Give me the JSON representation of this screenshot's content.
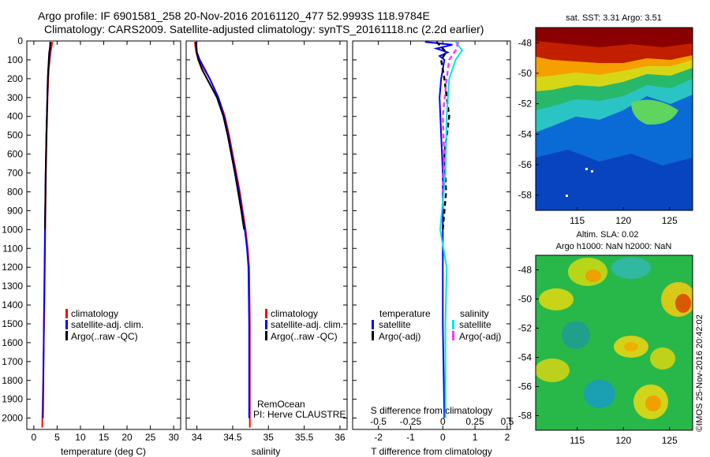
{
  "header": {
    "line1": "Argo profile: IF 6901581_258 20-Nov-2016 20161120_477 52.9993S 118.9784E",
    "line2": "Climatology: CARS2009. Satellite-adjusted climatology: synTS_20161118.nc (2.2d earlier)"
  },
  "colors": {
    "climatology": "#ff0000",
    "satellite": "#0000ff",
    "argo": "#000000",
    "sat_salinity": "#00e5e5",
    "argo_salinity": "#ff33ff"
  },
  "depth_axis": {
    "ticks": [
      "0",
      "100",
      "200",
      "300",
      "400",
      "500",
      "600",
      "700",
      "800",
      "900",
      "1000",
      "1100",
      "1200",
      "1300",
      "1400",
      "1500",
      "1600",
      "1700",
      "1800",
      "1900",
      "2000"
    ],
    "range": [
      0,
      2060
    ]
  },
  "chart_data": [
    {
      "type": "line",
      "panel": "temperature",
      "xlabel": "temperature (deg C)",
      "xlim": [
        -1.5,
        31.5
      ],
      "xticks": [
        "0",
        "5",
        "10",
        "15",
        "20",
        "25",
        "30"
      ],
      "legend": [
        "climatology",
        "satellite-adj. clim.",
        "Argo(..raw -QC)"
      ],
      "series": [
        {
          "name": "climatology",
          "depth": [
            5,
            30,
            60,
            100,
            150,
            200,
            300,
            500,
            700,
            1000,
            1200,
            1500,
            1800,
            2050
          ],
          "values": [
            4.0,
            3.8,
            3.6,
            3.4,
            3.2,
            3.1,
            2.95,
            2.75,
            2.6,
            2.45,
            2.35,
            2.2,
            2.0,
            1.8
          ]
        },
        {
          "name": "satellite-adj. clim.",
          "depth": [
            5,
            30,
            60,
            100,
            150,
            200,
            300,
            500,
            700,
            1000,
            1200,
            1500,
            1800,
            2000
          ],
          "values": [
            3.5,
            3.5,
            3.4,
            3.3,
            3.1,
            3.0,
            2.9,
            2.7,
            2.55,
            2.4,
            2.3,
            2.15,
            2.05,
            1.95
          ]
        },
        {
          "name": "Argo(..raw -QC)",
          "depth": [
            5,
            30,
            60,
            100,
            150,
            200,
            300,
            500,
            700,
            1000
          ],
          "values": [
            3.6,
            3.5,
            3.3,
            3.2,
            3.1,
            3.0,
            2.9,
            2.7,
            2.55,
            2.4
          ]
        }
      ]
    },
    {
      "type": "line",
      "panel": "salinity",
      "xlabel": "salinity",
      "xlim": [
        33.85,
        36.1
      ],
      "xticks": [
        "34",
        "34.5",
        "35",
        "35.5",
        "36"
      ],
      "legend": [
        "climatology",
        "satellite-adj. clim.",
        "Argo(..raw -QC)"
      ],
      "series": [
        {
          "name": "climatology",
          "depth": [
            5,
            60,
            100,
            150,
            200,
            300,
            400,
            500,
            600,
            700,
            800,
            900,
            1000,
            1100,
            1200,
            1500,
            2050
          ],
          "values": [
            33.97,
            33.99,
            34.02,
            34.1,
            34.18,
            34.3,
            34.39,
            34.45,
            34.5,
            34.55,
            34.6,
            34.64,
            34.68,
            34.71,
            34.73,
            34.74,
            34.74
          ]
        },
        {
          "name": "satellite-adj. clim.",
          "depth": [
            5,
            60,
            100,
            150,
            200,
            300,
            400,
            500,
            600,
            700,
            800,
            900,
            1000,
            1100,
            1200,
            1500,
            2000
          ],
          "values": [
            33.99,
            34.0,
            34.04,
            34.11,
            34.18,
            34.3,
            34.38,
            34.44,
            34.49,
            34.54,
            34.59,
            34.63,
            34.67,
            34.7,
            34.72,
            34.73,
            34.73
          ]
        },
        {
          "name": "Argo(..raw -QC)",
          "depth": [
            5,
            60,
            100,
            150,
            200,
            300,
            400,
            500,
            700,
            900,
            1000
          ],
          "values": [
            33.98,
            34.0,
            34.02,
            34.07,
            34.14,
            34.28,
            34.37,
            34.43,
            34.53,
            34.62,
            34.66
          ]
        }
      ],
      "annotation": [
        "RemOcean",
        "PI: Herve CLAUSTRE"
      ]
    },
    {
      "type": "line",
      "panel": "differences",
      "xlabel": "T difference from climatology",
      "xlabel_top": "S difference from climatology",
      "xlim": [
        -2.8,
        2.1
      ],
      "xticks": [
        "-2",
        "-1",
        "0",
        "1",
        "2"
      ],
      "xticks_top": [
        "-0.5",
        "-0.25",
        "0",
        "0.25",
        "0.5"
      ],
      "legend_titles": [
        "temperature",
        "salinity"
      ],
      "legend": [
        "satellite",
        "Argo(-adj)",
        "satellite",
        "Argo(-adj)"
      ],
      "series": [
        {
          "name": "temperature satellite",
          "depth": [
            5,
            20,
            40,
            60,
            80,
            100,
            150,
            200,
            300,
            500,
            700,
            1000,
            1500,
            2000
          ],
          "values": [
            -0.55,
            0.3,
            -0.2,
            0.15,
            -0.1,
            0.05,
            0.0,
            -0.05,
            -0.1,
            -0.05,
            0.0,
            0.0,
            0.0,
            0.05
          ]
        },
        {
          "name": "temperature Argo(-adj)",
          "depth": [
            5,
            30,
            60,
            100,
            200,
            400,
            600,
            800,
            1000
          ],
          "values": [
            -0.2,
            -0.05,
            0.1,
            -0.05,
            0.05,
            0.2,
            0.05,
            0.1,
            0.0
          ]
        },
        {
          "name": "salinity satellite",
          "depth": [
            5,
            50,
            100,
            200,
            400,
            700,
            1000,
            1200,
            1500,
            2000
          ],
          "values": [
            0.1,
            0.15,
            0.1,
            0.05,
            0.03,
            0.02,
            -0.02,
            0.03,
            0.02,
            0.02
          ]
        },
        {
          "name": "salinity Argo(-adj)",
          "depth": [
            5,
            50,
            100,
            200,
            400,
            600,
            800
          ],
          "values": [
            0.12,
            0.1,
            0.05,
            0.03,
            0.0,
            0.01,
            0.0
          ]
        }
      ]
    },
    {
      "type": "heatmap",
      "panel": "sst_map",
      "title": "sat. SST: 3.31  Argo: 3.51",
      "xticks": [
        "115",
        "120",
        "125"
      ],
      "yticks": [
        "-48",
        "-50",
        "-52",
        "-54",
        "-56",
        "-58"
      ],
      "xlim": [
        110.5,
        127.5
      ],
      "ylim": [
        -59,
        -47
      ]
    },
    {
      "type": "heatmap",
      "panel": "sla_map",
      "title": "Altim. SLA: 0.02",
      "subtitle": "Argo h1000: NaN h2000: NaN",
      "xticks": [
        "115",
        "120",
        "125"
      ],
      "yticks": [
        "-48",
        "-50",
        "-52",
        "-54",
        "-56",
        "-58"
      ],
      "xlim": [
        110.5,
        127.5
      ],
      "ylim": [
        -59,
        -47
      ],
      "side_label": "©IMOS 25-Nov-2016 20:42:02"
    }
  ]
}
